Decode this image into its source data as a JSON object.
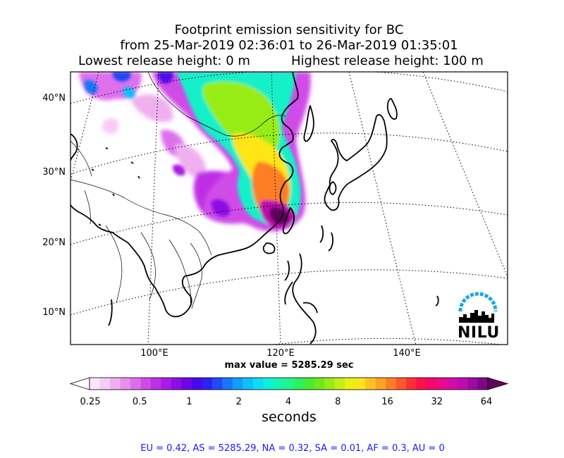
{
  "title": {
    "line1": "Footprint emission sensitivity for BC",
    "line2": "from 25-Mar-2019 02:36:01 to 26-Mar-2019 01:35:01",
    "lowest_release": "Lowest release height: 0 m",
    "highest_release": "Highest release height: 100 m"
  },
  "map": {
    "lat_labels": [
      "40°N",
      "30°N",
      "20°N",
      "10°N"
    ],
    "lon_labels": [
      "100°E",
      "120°E",
      "140°E"
    ],
    "max_value_text": "max value = 5285.29 sec"
  },
  "colorbar": {
    "tick_labels": [
      "0.25",
      "0.5",
      "1",
      "2",
      "4",
      "8",
      "16",
      "32",
      "64"
    ],
    "unit": "seconds",
    "colors": [
      "#ffffff",
      "#fbe6fb",
      "#f6ccf6",
      "#f0b0f0",
      "#e890ee",
      "#de6fec",
      "#d04ce8",
      "#bf2ee5",
      "#a81be3",
      "#8e0ee4",
      "#6e06e6",
      "#4a08ec",
      "#2d22f3",
      "#1f4cf8",
      "#1876fb",
      "#149cfb",
      "#10bffa",
      "#0ddcf3",
      "#0ff0dc",
      "#14f5b4",
      "#1ef58a",
      "#2eef5c",
      "#4aea34",
      "#6cea1e",
      "#98ec16",
      "#c4ef14",
      "#e8f014",
      "#fee518",
      "#fec41e",
      "#fea224",
      "#fe7e28",
      "#fe582c",
      "#fe3034",
      "#fe1048",
      "#f6086a",
      "#ea0a8c",
      "#d60ca4",
      "#bc0cae",
      "#9e0aa4",
      "#7e0688",
      "#60045e"
    ]
  },
  "logo": {
    "text": "NILU"
  },
  "regional_totals": "EU = 0.42,  AS = 5285.29,  NA = 0.32,  SA = 0.01,  AF = 0.3,  AU = 0"
}
